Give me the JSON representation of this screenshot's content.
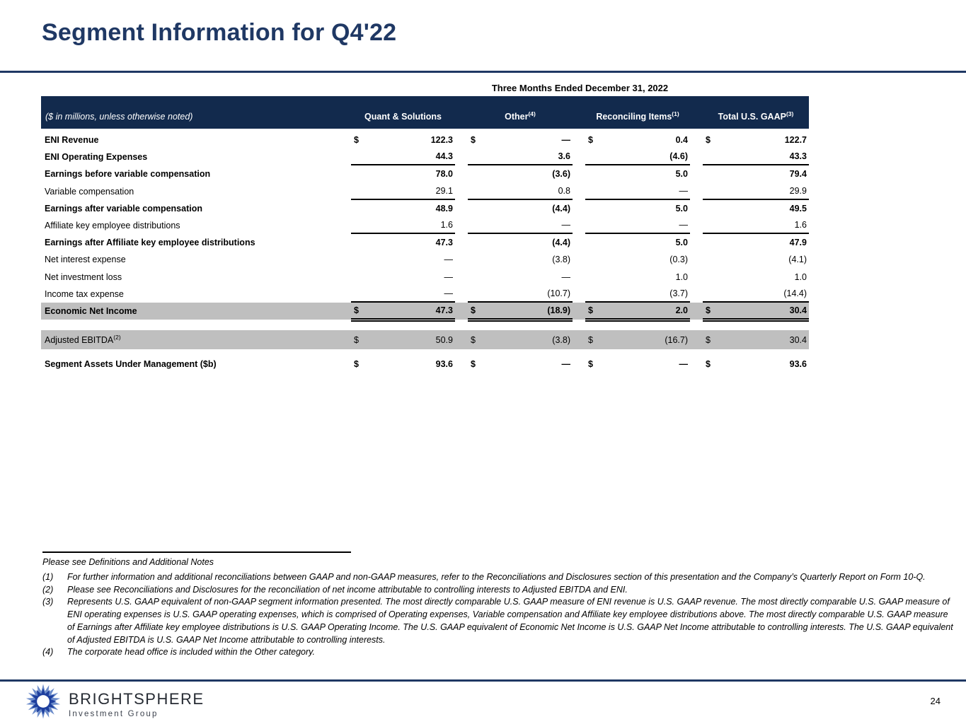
{
  "slide": {
    "title": "Segment Information for Q4'22",
    "page_number": "24"
  },
  "table": {
    "period_header": "Three Months Ended December 31, 2022",
    "corner_label": "($ in millions, unless otherwise noted)",
    "columns": [
      {
        "label": "Quant & Solutions",
        "sup": ""
      },
      {
        "label": "Other",
        "sup": "(4)"
      },
      {
        "label": "Reconciling Items",
        "sup": "(1)"
      },
      {
        "label": "Total U.S. GAAP",
        "sup": "(3)"
      }
    ],
    "rows": [
      {
        "label": "ENI Revenue",
        "sup": "",
        "bold": true,
        "dollar": true,
        "values": [
          "122.3",
          "—",
          "0.4",
          "122.7"
        ],
        "rule": "none",
        "grey": false,
        "gap": "none"
      },
      {
        "label": "ENI Operating Expenses",
        "sup": "",
        "bold": true,
        "dollar": false,
        "values": [
          "44.3",
          "3.6",
          "(4.6)",
          "43.3"
        ],
        "rule": "single",
        "grey": false,
        "gap": "none"
      },
      {
        "label": "Earnings before variable compensation",
        "sup": "",
        "bold": true,
        "dollar": false,
        "values": [
          "78.0",
          "(3.6)",
          "5.0",
          "79.4"
        ],
        "rule": "none",
        "grey": false,
        "gap": "none"
      },
      {
        "label": "Variable compensation",
        "sup": "",
        "bold": false,
        "dollar": false,
        "values": [
          "29.1",
          "0.8",
          "—",
          "29.9"
        ],
        "rule": "single",
        "grey": false,
        "gap": "none"
      },
      {
        "label": "Earnings after variable compensation",
        "sup": "",
        "bold": true,
        "dollar": false,
        "values": [
          "48.9",
          "(4.4)",
          "5.0",
          "49.5"
        ],
        "rule": "none",
        "grey": false,
        "gap": "none"
      },
      {
        "label": "Affiliate key employee distributions",
        "sup": "",
        "bold": false,
        "dollar": false,
        "values": [
          "1.6",
          "—",
          "—",
          "1.6"
        ],
        "rule": "single",
        "grey": false,
        "gap": "none"
      },
      {
        "label": "Earnings after Affiliate key employee distributions",
        "sup": "",
        "bold": true,
        "dollar": false,
        "values": [
          "47.3",
          "(4.4)",
          "5.0",
          "47.9"
        ],
        "rule": "none",
        "grey": false,
        "gap": "none"
      },
      {
        "label": "Net interest expense",
        "sup": "",
        "bold": false,
        "dollar": false,
        "values": [
          "—",
          "(3.8)",
          "(0.3)",
          "(4.1)"
        ],
        "rule": "none",
        "grey": false,
        "gap": "none"
      },
      {
        "label": "Net investment loss",
        "sup": "",
        "bold": false,
        "dollar": false,
        "values": [
          "—",
          "—",
          "1.0",
          "1.0"
        ],
        "rule": "none",
        "grey": false,
        "gap": "none"
      },
      {
        "label": "Income tax expense",
        "sup": "",
        "bold": false,
        "dollar": false,
        "values": [
          "—",
          "(10.7)",
          "(3.7)",
          "(14.4)"
        ],
        "rule": "single",
        "grey": false,
        "gap": "none"
      },
      {
        "label": "Economic Net Income",
        "sup": "",
        "bold": true,
        "dollar": true,
        "values": [
          "47.3",
          "(18.9)",
          "2.0",
          "30.4"
        ],
        "rule": "double",
        "grey": true,
        "gap": "none"
      },
      {
        "label": "Adjusted EBITDA",
        "sup": "(2)",
        "bold": false,
        "dollar": true,
        "values": [
          "50.9",
          "(3.8)",
          "(16.7)",
          "30.4"
        ],
        "rule": "none",
        "grey": true,
        "gap": "gap14",
        "tall": true
      },
      {
        "label": "Segment Assets Under Management ($b)",
        "sup": "",
        "bold": true,
        "dollar": true,
        "values": [
          "93.6",
          "—",
          "—",
          "93.6"
        ],
        "rule": "none",
        "grey": false,
        "gap": "gap10"
      }
    ]
  },
  "footnotes": {
    "lead": "Please see Definitions and Additional Notes",
    "items": [
      {
        "num": "(1)",
        "text": "For further information and additional reconciliations between GAAP and non-GAAP measures, refer to the Reconciliations and Disclosures section of this presentation and the Company’s Quarterly Report on Form 10-Q."
      },
      {
        "num": "(2)",
        "text": "Please see Reconciliations and Disclosures for the reconciliation of net income attributable to controlling interests to Adjusted EBITDA and ENI."
      },
      {
        "num": "(3)",
        "text": "Represents U.S. GAAP equivalent of non-GAAP segment information presented. The most directly comparable U.S. GAAP measure of ENI revenue is U.S. GAAP revenue. The most directly comparable U.S. GAAP measure of ENI operating expenses is U.S. GAAP operating expenses, which is comprised of Operating expenses, Variable compensation and Affiliate key employee distributions above.  The most directly comparable U.S. GAAP measure of Earnings after Affiliate key employee distributions is U.S. GAAP Operating Income. The U.S. GAAP equivalent of Economic Net Income is U.S. GAAP Net Income attributable to controlling interests. The U.S. GAAP equivalent of Adjusted EBITDA is U.S. GAAP Net Income attributable to controlling interests."
      },
      {
        "num": "(4)",
        "text": "The corporate head office is included within the Other category."
      }
    ]
  },
  "footer": {
    "brand": "BRIGHTSPHERE",
    "sub_brand": "Investment Group"
  },
  "colors": {
    "accent_navy": "#1F3864",
    "header_bar": "#122A4D",
    "row_grey": "#BFBFBF",
    "logo_blue_outer": "#5C7FC4",
    "logo_blue_inner": "#1E3F9E"
  }
}
